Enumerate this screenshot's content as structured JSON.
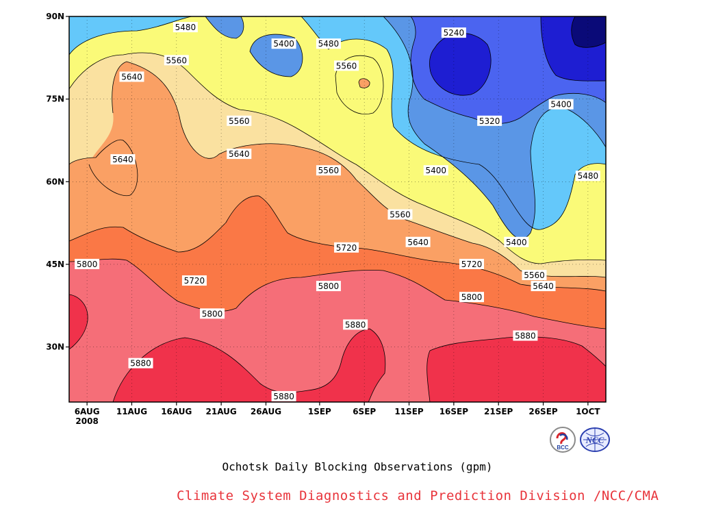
{
  "chart_data": {
    "type": "heatmap",
    "subtype": "filled-contour (latitude vs time Hovmoller)",
    "title": "Ochotsk Daily Blocking Observations (gpm)",
    "footer": "Climate System Diagnostics and Prediction Division /NCC/CMA",
    "x_axis": {
      "type": "date",
      "range": [
        "2008-08-04",
        "2008-10-03"
      ],
      "tick_labels": [
        "6AUG",
        "11AUG",
        "16AUG",
        "21AUG",
        "26AUG",
        "1SEP",
        "6SEP",
        "11SEP",
        "16SEP",
        "21SEP",
        "26SEP",
        "1OCT"
      ],
      "tick_dates": [
        "2008-08-06",
        "2008-08-11",
        "2008-08-16",
        "2008-08-21",
        "2008-08-26",
        "2008-09-01",
        "2008-09-06",
        "2008-09-11",
        "2008-09-16",
        "2008-09-21",
        "2008-09-26",
        "2008-10-01"
      ],
      "year_label": "2008"
    },
    "y_axis": {
      "label": "",
      "range": [
        20,
        90
      ],
      "tick_values": [
        30,
        45,
        60,
        75,
        90
      ],
      "tick_labels": [
        "30N",
        "45N",
        "60N",
        "75N",
        "90N"
      ]
    },
    "grid": "dotted",
    "contour_levels": [
      5240,
      5320,
      5400,
      5480,
      5560,
      5640,
      5720,
      5800,
      5880
    ],
    "bands": [
      {
        "min": 5160,
        "max": 5240,
        "color": "#0a0a78"
      },
      {
        "min": 5240,
        "max": 5320,
        "color": "#1e1ed2"
      },
      {
        "min": 5320,
        "max": 5400,
        "color": "#4b64f0"
      },
      {
        "min": 5400,
        "max": 5480,
        "color": "#5a96e6"
      },
      {
        "min": 5480,
        "max": 5560,
        "color": "#64c8fa"
      },
      {
        "min": 5560,
        "max": 5640,
        "color": "#fafa78"
      },
      {
        "min": 5640,
        "max": 5720,
        "color": "#fae1a0"
      },
      {
        "min": 5720,
        "max": 5800,
        "color": "#faa064"
      },
      {
        "min": 5800,
        "max": 5880,
        "color": "#fa7846"
      },
      {
        "min": 5880,
        "max": 5960,
        "color": "#f56e78"
      },
      {
        "min": 5960,
        "max": 6040,
        "color": "#f0324b"
      }
    ],
    "contour_labels": [
      {
        "text": "5480",
        "date": "2008-08-17",
        "lat": 88
      },
      {
        "text": "5400",
        "date": "2008-08-28",
        "lat": 85
      },
      {
        "text": "5480",
        "date": "2008-09-02",
        "lat": 85
      },
      {
        "text": "5560",
        "date": "2008-09-04",
        "lat": 81
      },
      {
        "text": "5240",
        "date": "2008-09-16",
        "lat": 87
      },
      {
        "text": "5560",
        "date": "2008-08-16",
        "lat": 82
      },
      {
        "text": "5640",
        "date": "2008-08-11",
        "lat": 79
      },
      {
        "text": "5560",
        "date": "2008-08-23",
        "lat": 71
      },
      {
        "text": "5640",
        "date": "2008-08-23",
        "lat": 65
      },
      {
        "text": "5640",
        "date": "2008-08-10",
        "lat": 64
      },
      {
        "text": "5560",
        "date": "2008-09-02",
        "lat": 62
      },
      {
        "text": "5400",
        "date": "2008-09-14",
        "lat": 62
      },
      {
        "text": "5320",
        "date": "2008-09-20",
        "lat": 71
      },
      {
        "text": "5400",
        "date": "2008-09-28",
        "lat": 74
      },
      {
        "text": "5480",
        "date": "2008-10-01",
        "lat": 61
      },
      {
        "text": "5560",
        "date": "2008-09-10",
        "lat": 54
      },
      {
        "text": "5640",
        "date": "2008-09-12",
        "lat": 49
      },
      {
        "text": "5400",
        "date": "2008-09-23",
        "lat": 49
      },
      {
        "text": "5720",
        "date": "2008-09-04",
        "lat": 48
      },
      {
        "text": "5800",
        "date": "2008-08-06",
        "lat": 45
      },
      {
        "text": "5720",
        "date": "2008-08-18",
        "lat": 42
      },
      {
        "text": "5720",
        "date": "2008-09-18",
        "lat": 45
      },
      {
        "text": "5560",
        "date": "2008-09-25",
        "lat": 43
      },
      {
        "text": "5640",
        "date": "2008-09-26",
        "lat": 41
      },
      {
        "text": "5800",
        "date": "2008-09-02",
        "lat": 41
      },
      {
        "text": "5800",
        "date": "2008-09-18",
        "lat": 39
      },
      {
        "text": "5800",
        "date": "2008-08-20",
        "lat": 36
      },
      {
        "text": "5880",
        "date": "2008-09-05",
        "lat": 34
      },
      {
        "text": "5880",
        "date": "2008-09-24",
        "lat": 32
      },
      {
        "text": "5880",
        "date": "2008-08-12",
        "lat": 27
      },
      {
        "text": "5880",
        "date": "2008-08-28",
        "lat": 21
      }
    ]
  },
  "logos": {
    "left": {
      "text": "BCC",
      "color": "#1f3fa0",
      "accent": "#d9262b"
    },
    "right": {
      "text": "NCC",
      "color": "#2b3fb0"
    }
  }
}
